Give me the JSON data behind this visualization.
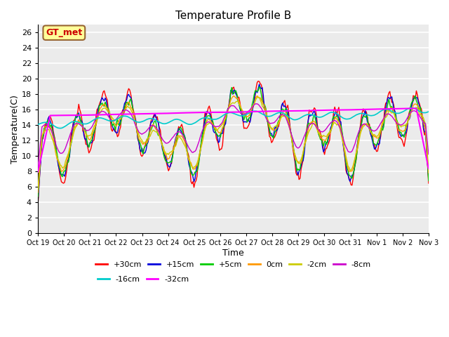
{
  "title": "Temperature Profile B",
  "xlabel": "Time",
  "ylabel": "Temperature(C)",
  "ylim": [
    0,
    27
  ],
  "yticks": [
    0,
    2,
    4,
    6,
    8,
    10,
    12,
    14,
    16,
    18,
    20,
    22,
    24,
    26
  ],
  "xtick_labels": [
    "Oct 19",
    "Oct 20",
    "Oct 21",
    "Oct 22",
    "Oct 23",
    "Oct 24",
    "Oct 25",
    "Oct 26",
    "Oct 27",
    "Oct 28",
    "Oct 29",
    "Oct 30",
    "Oct 31",
    "Nov 1",
    "Nov 2",
    "Nov 3"
  ],
  "annotation_text": "GT_met",
  "annotation_color": "#cc0000",
  "annotation_bg": "#ffff99",
  "annotation_border": "#996633",
  "series": [
    {
      "label": "+30cm",
      "color": "#ff0000",
      "lw": 1.0
    },
    {
      "label": "+15cm",
      "color": "#0000dd",
      "lw": 1.0
    },
    {
      "label": "+5cm",
      "color": "#00cc00",
      "lw": 1.0
    },
    {
      "label": "0cm",
      "color": "#ff9900",
      "lw": 1.0
    },
    {
      "label": "-2cm",
      "color": "#cccc00",
      "lw": 1.0
    },
    {
      "label": "-8cm",
      "color": "#cc00cc",
      "lw": 1.0
    },
    {
      "label": "-16cm",
      "color": "#00cccc",
      "lw": 1.2
    },
    {
      "label": "-32cm",
      "color": "#ff00ff",
      "lw": 1.5
    }
  ],
  "plot_bg": "#ebebeb",
  "grid_color": "#ffffff",
  "n_points": 384
}
